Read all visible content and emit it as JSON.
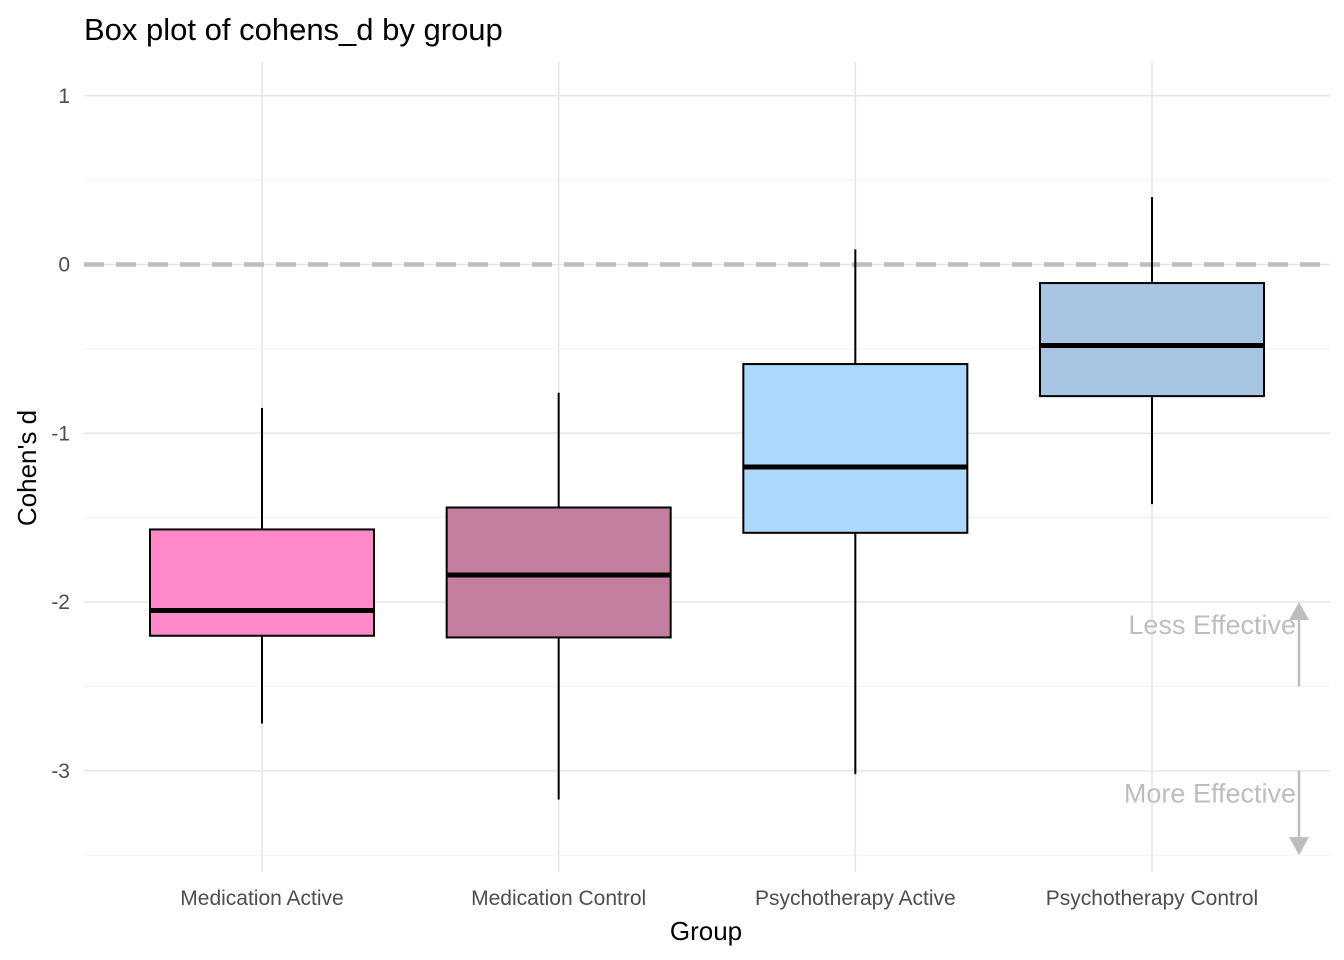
{
  "chart_data": {
    "type": "box",
    "title": "Box plot of cohens_d by group",
    "xlabel": "Group",
    "ylabel": "Cohen's d",
    "ylim": [
      -3.6,
      1.2
    ],
    "yticks": [
      1,
      0,
      -1,
      -2,
      -3
    ],
    "ytick_labels": [
      "1",
      "0",
      "-1",
      "-2",
      "-3"
    ],
    "grid": true,
    "reference_line": {
      "y": 0,
      "style": "dashed",
      "color": "#bdbdbd"
    },
    "categories": [
      "Medication Active",
      "Medication Control",
      "Psychotherapy Active",
      "Psychotherapy Control"
    ],
    "boxes": [
      {
        "category": "Medication Active",
        "min": -2.72,
        "q1": -2.2,
        "median": -2.05,
        "q3": -1.57,
        "max": -0.85,
        "color": "#ff88c8"
      },
      {
        "category": "Medication Control",
        "min": -3.17,
        "q1": -2.21,
        "median": -1.84,
        "q3": -1.44,
        "max": -0.76,
        "color": "#c47fa0"
      },
      {
        "category": "Psychotherapy Active",
        "min": -3.02,
        "q1": -1.59,
        "median": -1.2,
        "q3": -0.59,
        "max": 0.09,
        "color": "#acd8fc"
      },
      {
        "category": "Psychotherapy Control",
        "min": -1.42,
        "q1": -0.78,
        "median": -0.48,
        "q3": -0.11,
        "max": 0.4,
        "color": "#a8c6e4"
      }
    ],
    "annotations": [
      {
        "text": "Less Effective",
        "y": -2.13,
        "arrow_from": -2.5,
        "arrow_to": -2.0
      },
      {
        "text": "More Effective",
        "y": -3.13,
        "arrow_from": -3.0,
        "arrow_to": -3.5
      }
    ]
  }
}
